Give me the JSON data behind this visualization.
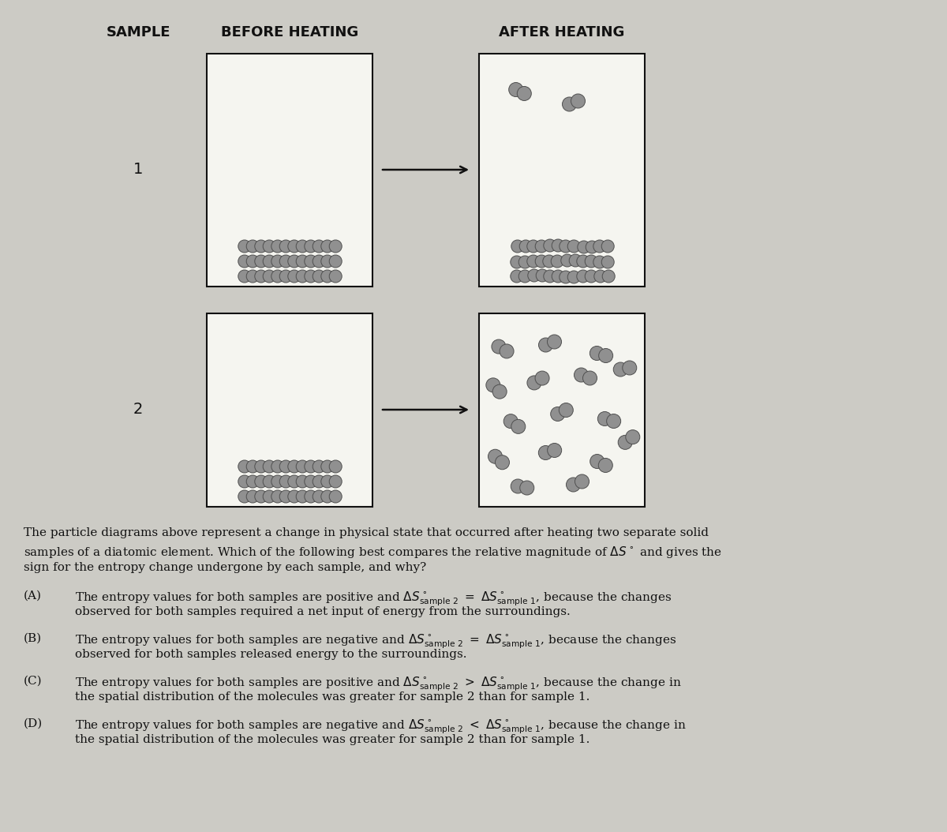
{
  "bg_color": "#cccbc5",
  "title_sample": "SAMPLE",
  "title_before": "BEFORE HEATING",
  "title_after": "AFTER HEATING",
  "sample1_label": "1",
  "sample2_label": "2",
  "particle_color": "#909090",
  "particle_edge_color": "#505050",
  "box_color": "#f5f5f0",
  "box_edge_color": "#111111",
  "arrow_color": "#111111",
  "text_color": "#111111",
  "para_line1": "The particle diagrams above represent a change in physical state that occurred after heating two separate solid",
  "para_line2": "samples of a diatomic element. Which of the following best compares the relative magnitude of ΔS° and gives the",
  "para_line3": "sign for the entropy change undergone by each sample, and why?",
  "A_line1": "The entropy values for both samples are positive and ΔS°  sample 2  =  ΔS°  sample 1,  because the changes",
  "A_line2": "observed for both samples required a net input of energy from the surroundings.",
  "B_line1": "The entropy values for both samples are negative and ΔS°  sample 2  =  ΔS°  sample 1,  because the changes",
  "B_line2": "observed for both samples released energy to the surroundings.",
  "C_line1": "The entropy values for both samples are positive and ΔS°  sample 2  >  ΔS°  sample 1,  because the change in",
  "C_line2": "the spatial distribution of the molecules was greater for sample 2 than for sample 1.",
  "D_line1": "The entropy values for both samples are negative and ΔS°  sample 2  <  ΔS°  sample 1,  because the change in",
  "D_line2": "the spatial distribution of the molecules was greater for sample 2 than for sample 1."
}
